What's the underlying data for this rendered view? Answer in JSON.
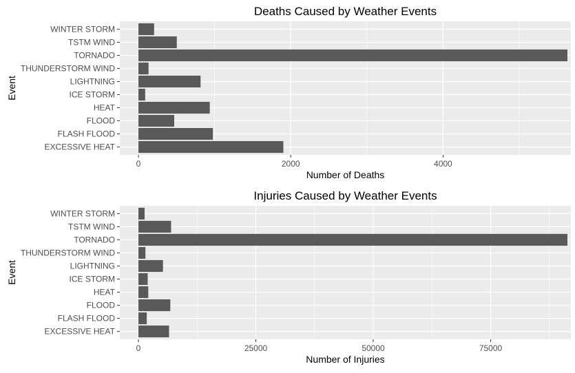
{
  "chart_data": [
    {
      "type": "bar",
      "orientation": "horizontal",
      "title": "Deaths Caused by Weather Events",
      "xlabel": "Number of Deaths",
      "ylabel": "Event",
      "categories": [
        "EXCESSIVE HEAT",
        "FLASH FLOOD",
        "FLOOD",
        "HEAT",
        "ICE STORM",
        "LIGHTNING",
        "THUNDERSTORM WIND",
        "TORNADO",
        "TSTM WIND",
        "WINTER STORM"
      ],
      "values": [
        1903,
        978,
        470,
        937,
        89,
        816,
        133,
        5633,
        504,
        206
      ],
      "xlim": [
        0,
        5633
      ],
      "xticks": [
        0,
        2000,
        4000
      ],
      "grid": true,
      "colors": {
        "bar": "#595959",
        "panel": "#ebebeb",
        "grid": "#ffffff"
      }
    },
    {
      "type": "bar",
      "orientation": "horizontal",
      "title": "Injuries Caused by Weather Events",
      "xlabel": "Number of Injuries",
      "ylabel": "Event",
      "categories": [
        "EXCESSIVE HEAT",
        "FLASH FLOOD",
        "FLOOD",
        "HEAT",
        "ICE STORM",
        "LIGHTNING",
        "THUNDERSTORM WIND",
        "TORNADO",
        "TSTM WIND",
        "WINTER STORM"
      ],
      "values": [
        6525,
        1777,
        6789,
        2100,
        1975,
        5230,
        1488,
        91346,
        6957,
        1321
      ],
      "xlim": [
        0,
        91346
      ],
      "xticks": [
        0,
        25000,
        50000,
        75000
      ],
      "grid": true,
      "colors": {
        "bar": "#595959",
        "panel": "#ebebeb",
        "grid": "#ffffff"
      }
    }
  ]
}
